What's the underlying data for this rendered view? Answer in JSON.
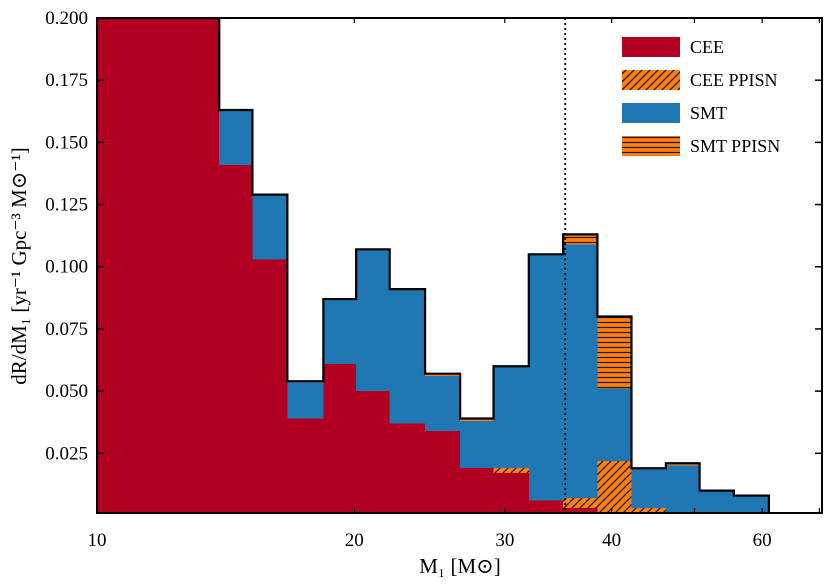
{
  "chart_data": {
    "type": "bar",
    "stacked": true,
    "title": "",
    "xlabel": "M₁ [M⊙]",
    "ylabel": "dR/dM₁ [yr⁻¹ Gpc⁻³ M⊙⁻¹]",
    "x_scale": "log",
    "xlim": [
      10,
      70.5
    ],
    "ylim": [
      0.001,
      0.2
    ],
    "grid": false,
    "legend_position": "top-right",
    "bin_edges": [
      10,
      13.9,
      15.2,
      16.7,
      18.4,
      20.1,
      22.0,
      24.2,
      26.6,
      29.1,
      32.0,
      35.1,
      38.5,
      42.2,
      46.3,
      50.7,
      55.6,
      61.1
    ],
    "series": [
      {
        "name": "CEE",
        "color": "#b20022",
        "hatch": "none",
        "values": [
          0.2,
          0.141,
          0.103,
          0.039,
          0.061,
          0.05,
          0.037,
          0.034,
          0.019,
          0.017,
          0.006,
          0.003,
          0,
          0,
          0,
          0,
          0
        ]
      },
      {
        "name": "CEE PPISN",
        "color": "#ff7f0e",
        "hatch": "diagonal",
        "values": [
          0,
          0,
          0,
          0,
          0,
          0,
          0,
          0,
          0,
          0.002,
          0,
          0.004,
          0.022,
          0.003,
          0,
          0,
          0
        ]
      },
      {
        "name": "SMT",
        "color": "#1f77b4",
        "hatch": "none",
        "values": [
          0,
          0.022,
          0.026,
          0.015,
          0.026,
          0.057,
          0.054,
          0.022,
          0.019,
          0.041,
          0.099,
          0.102,
          0.029,
          0.016,
          0.02,
          0.01,
          0.008
        ]
      },
      {
        "name": "SMT PPISN",
        "color": "#ff7f0e",
        "hatch": "horizontal",
        "values": [
          0,
          0,
          0,
          0,
          0,
          0,
          0,
          0.001,
          0.001,
          0,
          0,
          0.004,
          0.029,
          0,
          0.001,
          0,
          0
        ]
      }
    ],
    "vline": {
      "x": 35.3,
      "style": "dotted",
      "color": "#000000"
    },
    "xticks": {
      "values": [
        10,
        20,
        30,
        40,
        60
      ],
      "labels": [
        "10",
        "20",
        "30",
        "40",
        "60"
      ]
    },
    "x_minor_ticks": [
      20,
      30,
      40,
      50,
      60,
      70
    ],
    "yticks": {
      "values": [
        0.025,
        0.05,
        0.075,
        0.1,
        0.125,
        0.15,
        0.175,
        0.2
      ],
      "labels": [
        "0.025",
        "0.050",
        "0.075",
        "0.100",
        "0.125",
        "0.150",
        "0.175",
        "0.200"
      ]
    }
  }
}
